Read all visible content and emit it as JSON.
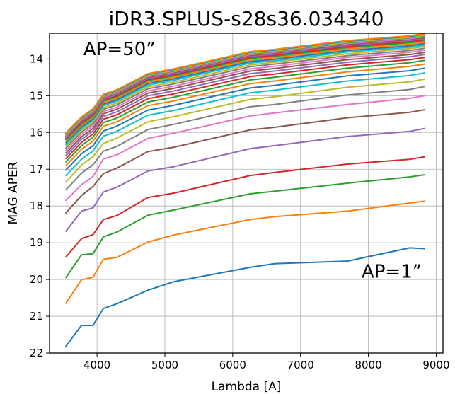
{
  "chart_data": {
    "type": "line",
    "title": "iDR3.SPLUS-s28s36.034340",
    "xlabel": "Lambda [A]",
    "ylabel": "MAG APER",
    "xlim": [
      3300,
      9100
    ],
    "ylim": [
      22,
      13.3
    ],
    "y_inverted": true,
    "grid": true,
    "legend": "none",
    "xticks": [
      4000,
      5000,
      6000,
      7000,
      8000,
      9000
    ],
    "xtick_labels": [
      "4000",
      "5000",
      "6000",
      "7000",
      "8000",
      "9000"
    ],
    "yticks": [
      14,
      15,
      16,
      17,
      18,
      19,
      20,
      21,
      22
    ],
    "ytick_labels": [
      "14",
      "15",
      "16",
      "17",
      "18",
      "19",
      "20",
      "21",
      "22"
    ],
    "annotations": [
      {
        "text": "AP=50”",
        "x": 3800,
        "y": 13.9
      },
      {
        "text": "AP=1”",
        "x": 7900,
        "y": 19.95
      }
    ],
    "x": [
      3536,
      3770,
      3940,
      4094,
      4292,
      4751,
      5133,
      6258,
      6614,
      7690,
      8611,
      8831
    ],
    "series": [
      {
        "color": "#1f77b4",
        "values": [
          21.83,
          21.25,
          21.25,
          20.79,
          20.66,
          20.29,
          20.06,
          19.67,
          19.57,
          19.5,
          19.14,
          19.16
        ]
      },
      {
        "color": "#ff7f0e",
        "values": [
          20.66,
          20.01,
          19.94,
          19.45,
          19.4,
          18.98,
          18.79,
          18.37,
          18.29,
          18.14,
          17.92,
          17.87
        ]
      },
      {
        "color": "#2ca02c",
        "values": [
          19.96,
          19.33,
          19.3,
          18.84,
          18.71,
          18.25,
          18.11,
          17.67,
          17.6,
          17.38,
          17.21,
          17.15
        ]
      },
      {
        "color": "#d62728",
        "values": [
          19.4,
          18.89,
          18.78,
          18.37,
          18.26,
          17.77,
          17.65,
          17.17,
          17.09,
          16.86,
          16.73,
          16.66
        ]
      },
      {
        "color": "#9467bd",
        "values": [
          18.7,
          18.14,
          18.05,
          17.62,
          17.49,
          17.05,
          16.93,
          16.44,
          16.36,
          16.11,
          15.97,
          15.89
        ]
      },
      {
        "color": "#8c564b",
        "values": [
          18.2,
          17.72,
          17.47,
          17.12,
          16.97,
          16.52,
          16.4,
          15.93,
          15.86,
          15.6,
          15.45,
          15.38
        ]
      },
      {
        "color": "#e377c2",
        "values": [
          17.86,
          17.42,
          17.2,
          16.72,
          16.61,
          16.16,
          16.02,
          15.55,
          15.47,
          15.24,
          15.07,
          15.0
        ]
      },
      {
        "color": "#7f7f7f",
        "values": [
          17.57,
          17.11,
          16.88,
          16.51,
          16.38,
          15.92,
          15.78,
          15.3,
          15.24,
          14.98,
          14.83,
          14.75
        ]
      },
      {
        "color": "#bcbd22",
        "values": [
          17.36,
          16.89,
          16.66,
          16.3,
          16.15,
          15.71,
          15.57,
          15.1,
          15.03,
          14.77,
          14.62,
          14.55
        ]
      },
      {
        "color": "#17becf",
        "values": [
          17.18,
          16.73,
          16.5,
          16.1,
          15.97,
          15.53,
          15.4,
          14.92,
          14.85,
          14.6,
          14.45,
          14.38
        ]
      },
      {
        "color": "#1f77b4",
        "values": [
          17.03,
          16.58,
          16.36,
          15.96,
          15.83,
          15.39,
          15.26,
          14.79,
          14.72,
          14.46,
          14.32,
          14.25
        ]
      },
      {
        "color": "#ff7f0e",
        "values": [
          16.91,
          16.46,
          16.24,
          15.83,
          15.71,
          15.27,
          15.14,
          14.67,
          14.6,
          14.35,
          14.2,
          14.14
        ]
      },
      {
        "color": "#2ca02c",
        "values": [
          16.81,
          16.36,
          16.13,
          15.73,
          15.61,
          15.17,
          15.04,
          14.57,
          14.5,
          14.25,
          14.1,
          14.04
        ]
      },
      {
        "color": "#d62728",
        "values": [
          16.72,
          16.27,
          16.04,
          15.64,
          15.52,
          15.08,
          14.95,
          14.48,
          14.41,
          14.16,
          14.02,
          13.96
        ]
      },
      {
        "color": "#9467bd",
        "values": [
          16.64,
          16.19,
          15.96,
          15.56,
          15.44,
          15.0,
          14.87,
          14.4,
          14.33,
          14.09,
          13.94,
          13.88
        ]
      },
      {
        "color": "#8c564b",
        "values": [
          16.57,
          16.12,
          15.89,
          15.49,
          15.37,
          14.93,
          14.8,
          14.33,
          14.26,
          14.02,
          13.88,
          13.82
        ]
      },
      {
        "color": "#e377c2",
        "values": [
          16.5,
          16.05,
          15.83,
          15.43,
          15.31,
          14.87,
          14.74,
          14.27,
          14.2,
          13.96,
          13.82,
          13.76
        ]
      },
      {
        "color": "#7f7f7f",
        "values": [
          16.44,
          15.99,
          15.77,
          15.37,
          15.25,
          14.81,
          14.68,
          14.21,
          14.14,
          13.91,
          13.77,
          13.71
        ]
      },
      {
        "color": "#bcbd22",
        "values": [
          16.39,
          15.94,
          15.72,
          15.32,
          15.2,
          14.76,
          14.63,
          14.16,
          14.09,
          13.86,
          13.72,
          13.66
        ]
      },
      {
        "color": "#17becf",
        "values": [
          16.34,
          15.89,
          15.67,
          15.27,
          15.15,
          14.71,
          14.58,
          14.11,
          14.05,
          13.81,
          13.68,
          13.62
        ]
      },
      {
        "color": "#1f77b4",
        "values": [
          16.29,
          15.85,
          15.63,
          15.23,
          15.11,
          14.67,
          14.54,
          14.07,
          14.01,
          13.77,
          13.64,
          13.58
        ]
      },
      {
        "color": "#ff7f0e",
        "values": [
          16.25,
          15.81,
          15.59,
          15.19,
          15.07,
          14.63,
          14.5,
          14.03,
          13.97,
          13.73,
          13.6,
          13.54
        ]
      },
      {
        "color": "#2ca02c",
        "values": [
          16.21,
          15.77,
          15.55,
          15.15,
          15.03,
          14.59,
          14.46,
          13.99,
          13.93,
          13.69,
          13.56,
          13.5
        ]
      },
      {
        "color": "#d62728",
        "values": [
          16.18,
          15.74,
          15.52,
          15.12,
          15.0,
          14.56,
          14.43,
          13.96,
          13.9,
          13.66,
          13.53,
          13.47
        ]
      },
      {
        "color": "#9467bd",
        "values": [
          16.15,
          15.71,
          15.49,
          15.09,
          14.97,
          14.53,
          14.4,
          13.93,
          13.87,
          13.63,
          13.5,
          13.44
        ]
      },
      {
        "color": "#8c564b",
        "values": [
          16.12,
          15.68,
          15.46,
          15.06,
          14.94,
          14.5,
          14.37,
          13.9,
          13.84,
          13.6,
          13.47,
          13.41
        ]
      },
      {
        "color": "#e377c2",
        "values": [
          16.1,
          15.66,
          15.44,
          15.04,
          14.92,
          14.48,
          14.35,
          13.88,
          13.82,
          13.58,
          13.45,
          13.39
        ]
      },
      {
        "color": "#7f7f7f",
        "values": [
          16.08,
          15.64,
          15.42,
          15.02,
          14.9,
          14.46,
          14.33,
          13.86,
          13.8,
          13.56,
          13.43,
          13.37
        ]
      },
      {
        "color": "#bcbd22",
        "values": [
          16.06,
          15.62,
          15.4,
          15.0,
          14.88,
          14.44,
          14.31,
          13.84,
          13.78,
          13.54,
          13.41,
          13.35
        ]
      },
      {
        "color": "#17becf",
        "values": [
          16.04,
          15.6,
          15.38,
          14.98,
          14.86,
          14.42,
          14.29,
          13.82,
          13.76,
          13.52,
          13.39,
          13.33
        ]
      },
      {
        "color": "#1f77b4",
        "values": [
          16.03,
          15.59,
          15.37,
          14.97,
          14.85,
          14.41,
          14.28,
          13.81,
          13.75,
          13.51,
          13.38,
          13.32
        ]
      },
      {
        "color": "#ff7f0e",
        "values": [
          16.02,
          15.58,
          15.36,
          14.96,
          14.84,
          14.4,
          14.27,
          13.8,
          13.74,
          13.5,
          13.37,
          13.31
        ]
      }
    ]
  }
}
